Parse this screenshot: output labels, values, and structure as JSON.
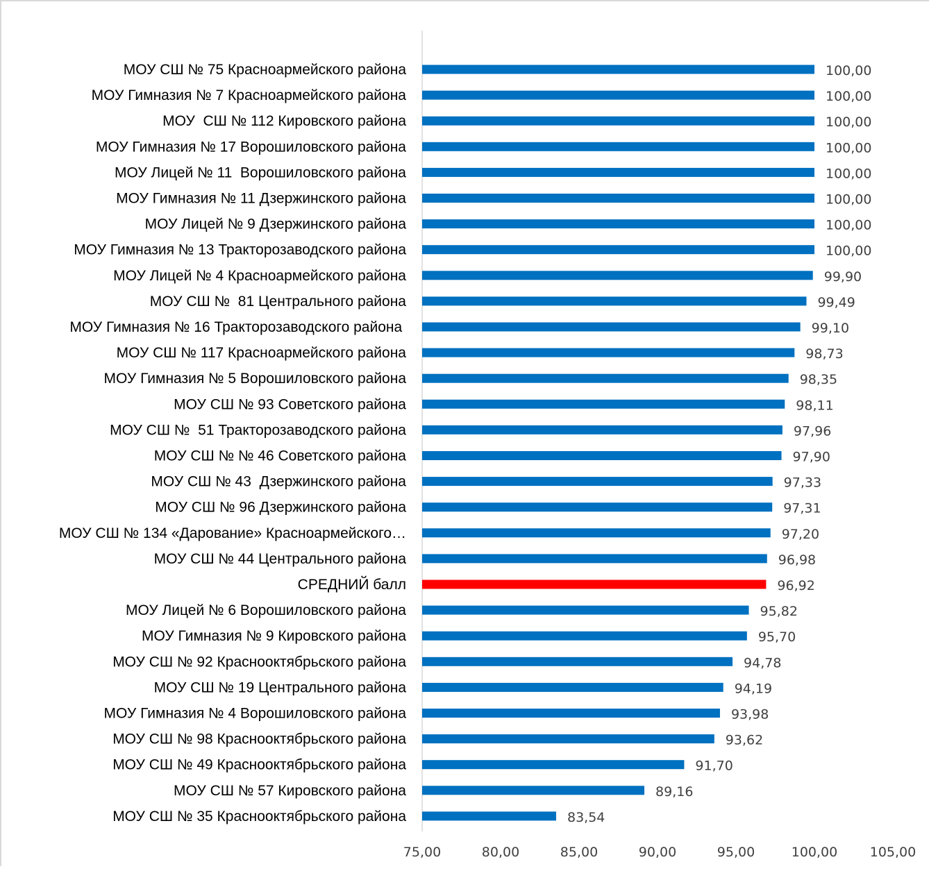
{
  "chart_data": {
    "type": "bar",
    "orientation": "horizontal",
    "title": "",
    "xlabel": "",
    "ylabel": "",
    "xlim": [
      75,
      105
    ],
    "x_ticks": [
      "75,00",
      "80,00",
      "85,00",
      "90,00",
      "95,00",
      "100,00",
      "105,00"
    ],
    "x_tick_values": [
      75,
      80,
      85,
      90,
      95,
      100,
      105
    ],
    "grid": false,
    "legend": "none",
    "colors": {
      "bar": "#0070c0",
      "highlight": "#ff0000",
      "axis": "#d9d9d9"
    },
    "categories": [
      "МОУ СШ № 75 Красноармейского района",
      "МОУ Гимназия № 7 Красноармейского района",
      "МОУ  СШ № 112 Кировского района",
      "МОУ Гимназия № 17 Ворошиловского района",
      "МОУ Лицей № 11  Ворошиловского района",
      "МОУ Гимназия № 11 Дзержинского района",
      "МОУ Лицей № 9 Дзержинского района",
      "МОУ Гимназия № 13 Тракторозаводского района",
      "МОУ Лицей № 4 Красноармейского района",
      "МОУ СШ №  81 Центрального района",
      "МОУ Гимназия № 16 Тракторозаводского района ",
      "МОУ СШ № 117 Красноармейского района",
      "МОУ Гимназия № 5 Ворошиловского района",
      "МОУ СШ № 93 Советского района",
      "МОУ СШ №  51 Тракторозаводского района",
      "МОУ СШ № № 46 Советского района",
      "МОУ СШ № 43  Дзержинского района",
      "МОУ СШ № 96 Дзержинского района",
      "МОУ СШ № 134 «Дарование» Красноармейского…",
      "МОУ СШ № 44 Центрального района",
      "СРЕДНИЙ балл",
      "МОУ Лицей № 6 Ворошиловского района",
      "МОУ Гимназия № 9 Кировского района",
      "МОУ СШ № 92 Краснооктябрьского района",
      "МОУ СШ № 19 Центрального района",
      "МОУ Гимназия № 4 Ворошиловского района",
      "МОУ СШ № 98 Краснооктябрьского района",
      "МОУ СШ № 49 Краснооктябрьского района",
      "МОУ СШ № 57 Кировского района",
      "МОУ СШ № 35 Краснооктябрьского района"
    ],
    "values": [
      100.0,
      100.0,
      100.0,
      100.0,
      100.0,
      100.0,
      100.0,
      100.0,
      99.9,
      99.49,
      99.1,
      98.73,
      98.35,
      98.11,
      97.96,
      97.9,
      97.33,
      97.31,
      97.2,
      96.98,
      96.92,
      95.82,
      95.7,
      94.78,
      94.19,
      93.98,
      93.62,
      91.7,
      89.16,
      83.54
    ],
    "value_labels": [
      "100,00",
      "100,00",
      "100,00",
      "100,00",
      "100,00",
      "100,00",
      "100,00",
      "100,00",
      "99,90",
      "99,49",
      "99,10",
      "98,73",
      "98,35",
      "98,11",
      "97,96",
      "97,90",
      "97,33",
      "97,31",
      "97,20",
      "96,98",
      "96,92",
      "95,82",
      "95,70",
      "94,78",
      "94,19",
      "93,98",
      "93,62",
      "91,70",
      "89,16",
      "83,54"
    ],
    "highlight_index": 20
  }
}
